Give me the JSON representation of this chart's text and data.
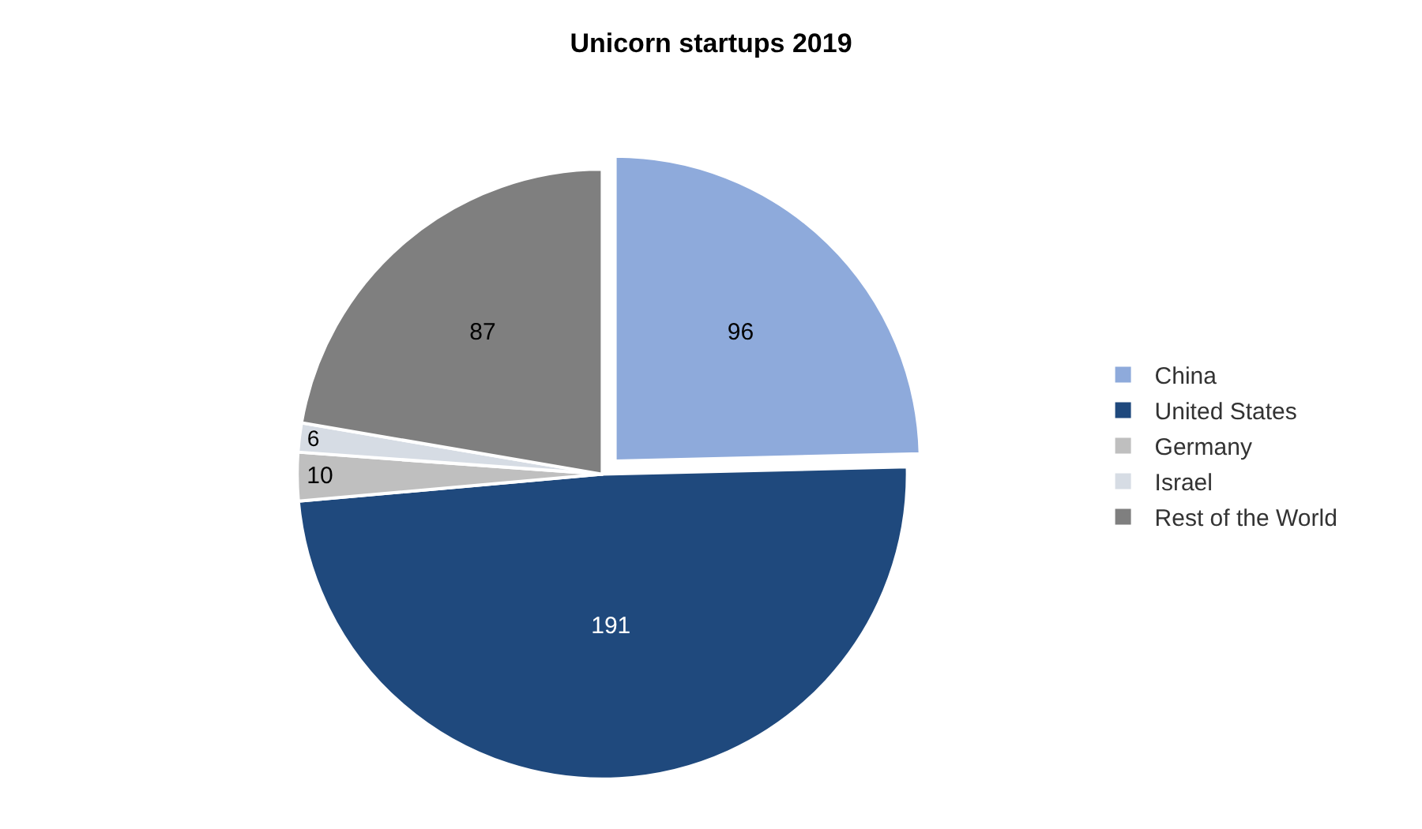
{
  "chart_data": {
    "type": "pie",
    "title": "Unicorn startups 2019",
    "categories": [
      "China",
      "United States",
      "Germany",
      "Israel",
      "Rest of the World"
    ],
    "values": [
      96,
      191,
      10,
      6,
      87
    ],
    "colors": [
      "#8eaadb",
      "#1f497d",
      "#bfbfbf",
      "#d6dce4",
      "#7f7f7f"
    ],
    "data_labels": true,
    "legend": "right"
  }
}
